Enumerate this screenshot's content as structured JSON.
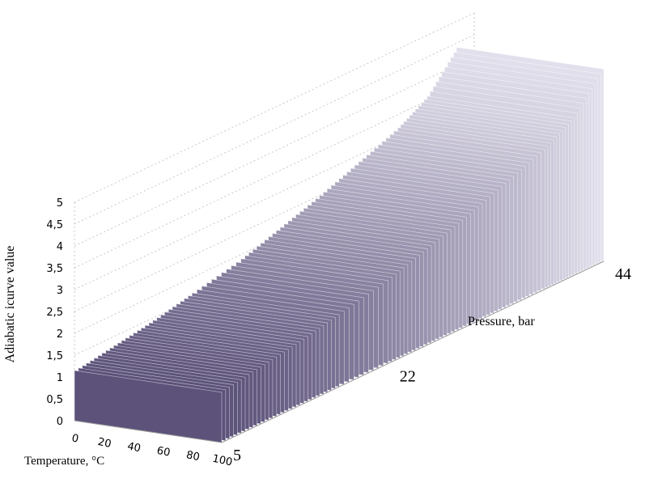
{
  "chart_data": {
    "type": "surface-3d",
    "title": "",
    "zlabel": "Adiabatic icurve value",
    "xlabel": "Temperature, °C",
    "ylabel": "Pressure,  bar",
    "z_ticks": [
      "0",
      "0,5",
      "1",
      "1,5",
      "2",
      "2,5",
      "3",
      "3,5",
      "4",
      "4,5",
      "5"
    ],
    "zlim": [
      0,
      5
    ],
    "x_ticks": [
      "0",
      "20",
      "40",
      "60",
      "80",
      "100"
    ],
    "xlim": [
      0,
      100
    ],
    "y_ticks": [
      "5",
      "22",
      "44"
    ],
    "ylim": [
      5,
      44
    ],
    "grid": true,
    "series": [
      {
        "pressure": 5,
        "values_over_temperature": [
          0.05,
          1.15,
          1.15,
          1.15,
          1.15,
          1.15
        ]
      },
      {
        "pressure": 9,
        "values_over_temperature": [
          0.05,
          1.3,
          1.3,
          1.3,
          1.3,
          1.3
        ]
      },
      {
        "pressure": 13,
        "values_over_temperature": [
          0.05,
          1.45,
          1.45,
          1.45,
          1.45,
          1.45
        ]
      },
      {
        "pressure": 17,
        "values_over_temperature": [
          0.05,
          1.65,
          1.65,
          1.65,
          1.65,
          1.65
        ]
      },
      {
        "pressure": 22,
        "values_over_temperature": [
          0.05,
          1.9,
          1.9,
          1.9,
          1.9,
          1.9
        ]
      },
      {
        "pressure": 26,
        "values_over_temperature": [
          0.05,
          2.2,
          2.2,
          2.2,
          2.2,
          2.2
        ]
      },
      {
        "pressure": 30,
        "values_over_temperature": [
          0.05,
          2.5,
          2.5,
          2.5,
          2.5,
          2.5
        ]
      },
      {
        "pressure": 34,
        "values_over_temperature": [
          0.05,
          2.85,
          2.85,
          2.85,
          2.85,
          2.85
        ]
      },
      {
        "pressure": 38,
        "values_over_temperature": [
          0.05,
          3.2,
          3.2,
          3.2,
          3.2,
          3.2
        ]
      },
      {
        "pressure": 41,
        "values_over_temperature": [
          0.05,
          3.6,
          3.6,
          3.6,
          3.6,
          3.6
        ]
      },
      {
        "pressure": 44,
        "values_over_temperature": [
          0.05,
          4.4,
          4.4,
          4.4,
          4.4,
          4.4
        ]
      }
    ]
  }
}
